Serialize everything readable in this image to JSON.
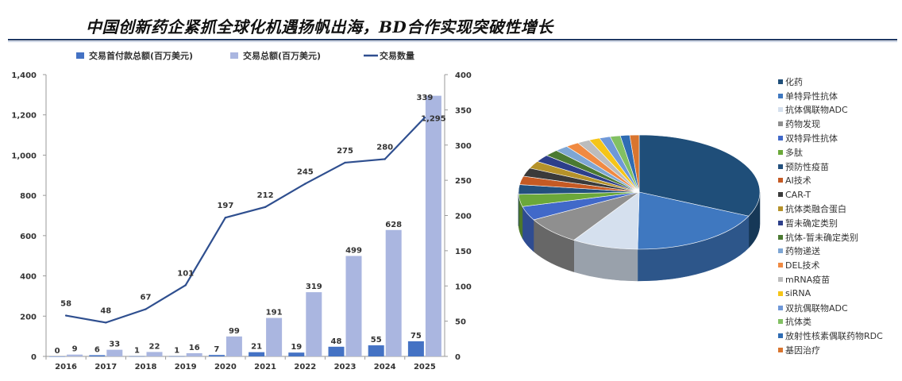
{
  "page": {
    "title": "中国创新药企紧抓全球化机遇扬帆出海，BD合作实现突破性增长"
  },
  "colors": {
    "upfront_bar": "#4472c4",
    "total_bar": "#aab6e0",
    "count_line": "#2f4f8f",
    "title_rule": "#1f3864"
  },
  "chart_data": [
    {
      "type": "bar",
      "categories": [
        "2016",
        "2017",
        "2018",
        "2019",
        "2020",
        "2021",
        "2022",
        "2023",
        "2024",
        "2025"
      ],
      "legend_position": "top",
      "grid": false,
      "series": [
        {
          "name": "交易首付款总额(百万美元)",
          "axis": "left",
          "type": "bar",
          "color": "#4472c4",
          "values": [
            0,
            6,
            1,
            1,
            7,
            21,
            19,
            48,
            55,
            75
          ],
          "labels": [
            "0",
            "6",
            "1",
            "1",
            "7",
            "21",
            "19",
            "48",
            "55",
            "75"
          ]
        },
        {
          "name": "交易总额(百万美元)",
          "axis": "left",
          "type": "bar",
          "color": "#aab6e0",
          "values": [
            9,
            33,
            22,
            16,
            99,
            191,
            319,
            499,
            628,
            1295
          ],
          "labels": [
            "9",
            "33",
            "22",
            "16",
            "99",
            "191",
            "319",
            "499",
            "628",
            "1,295"
          ]
        },
        {
          "name": "交易数量",
          "axis": "right",
          "type": "line",
          "color": "#2f4f8f",
          "values": [
            58,
            48,
            67,
            101,
            197,
            212,
            245,
            275,
            280,
            339
          ],
          "labels": [
            "58",
            "48",
            "67",
            "101",
            "197",
            "212",
            "245",
            "275",
            "280",
            "339"
          ]
        }
      ],
      "y_left": {
        "min": 0,
        "max": 1400,
        "ticks": [
          0,
          200,
          400,
          600,
          800,
          1000,
          1200,
          1400
        ],
        "tick_labels": [
          "0",
          "200",
          "400",
          "600",
          "800",
          "1,000",
          "1,200",
          "1,400"
        ]
      },
      "y_right": {
        "min": 0,
        "max": 400,
        "ticks": [
          0,
          50,
          100,
          150,
          200,
          250,
          300,
          350,
          400
        ],
        "tick_labels": [
          "0",
          "50",
          "100",
          "150",
          "200",
          "250",
          "300",
          "350",
          "400"
        ]
      }
    },
    {
      "type": "pie",
      "style": "3d",
      "legend_position": "right",
      "categories": [
        "化药",
        "单特异性抗体",
        "抗体偶联物ADC",
        "药物发现",
        "双特异性抗体",
        "多肽",
        "预防性疫苗",
        "AI技术",
        "CAR-T",
        "抗体类融合蛋白",
        "暂未确定类别",
        "抗体-暂未确定类别",
        "药物递送",
        "DEL技术",
        "mRNA疫苗",
        "siRNA",
        "双抗偶联物ADC",
        "抗体类",
        "放射性核素偶联药物RDC",
        "基因治疗"
      ],
      "values": [
        30.5,
        17.5,
        8.5,
        7.5,
        3.8,
        3.3,
        2.6,
        2.3,
        2.3,
        2.0,
        2.0,
        1.8,
        1.7,
        1.7,
        1.6,
        1.4,
        1.4,
        1.3,
        1.2,
        1.2
      ],
      "colors": [
        "#1f4e79",
        "#3f78c0",
        "#d5e0ee",
        "#8f8f8f",
        "#4169c9",
        "#6ba83a",
        "#23507d",
        "#c55a24",
        "#3a3a3a",
        "#b5922a",
        "#2d3f8a",
        "#4b7a32",
        "#7ea6d4",
        "#f08a42",
        "#bcbcbc",
        "#f5c518",
        "#6f98d8",
        "#82c063",
        "#2f6cb3",
        "#d9752f"
      ]
    }
  ]
}
